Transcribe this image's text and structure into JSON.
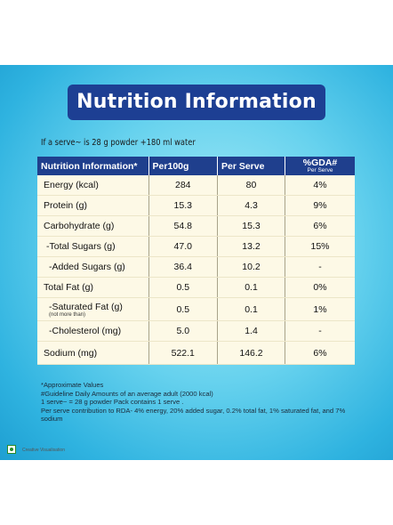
{
  "banner_title": "Nutrition Information",
  "serve_line": "If a serve~ is 28 g powder +180 ml water",
  "table": {
    "headers": {
      "name": "Nutrition Information*",
      "per100g": "Per100g",
      "perserve": "Per Serve",
      "gda_main": "%GDA#",
      "gda_sub": "Per Serve"
    },
    "rows": [
      {
        "label": "Energy (kcal)",
        "note": "",
        "per100g": "284",
        "perserve": "80",
        "gda": "4%"
      },
      {
        "label": "Protein (g)",
        "note": "",
        "per100g": "15.3",
        "perserve": "4.3",
        "gda": "9%"
      },
      {
        "label": "Carbohydrate (g)",
        "note": "",
        "per100g": "54.8",
        "perserve": "15.3",
        "gda": "6%"
      },
      {
        "label": "-Total Sugars (g)",
        "note": "",
        "per100g": "47.0",
        "perserve": "13.2",
        "gda": "15%"
      },
      {
        "label": "-Added Sugars (g)",
        "note": "",
        "per100g": "36.4",
        "perserve": "10.2",
        "gda": "-"
      },
      {
        "label": "Total Fat (g)",
        "note": "",
        "per100g": "0.5",
        "perserve": "0.1",
        "gda": "0%"
      },
      {
        "label": "-Saturated Fat (g)",
        "note": "(not more than)",
        "per100g": "0.5",
        "perserve": "0.1",
        "gda": "1%"
      },
      {
        "label": "-Cholesterol (mg)",
        "note": "",
        "per100g": "5.0",
        "perserve": "1.4",
        "gda": "-"
      },
      {
        "label": "Sodium (mg)",
        "note": "",
        "per100g": "522.1",
        "perserve": "146.2",
        "gda": "6%"
      }
    ]
  },
  "footnotes": [
    "*Approximate Values",
    "#Guideline Daily Amounts of an average adult (2000 kcal)",
    "1 serve~ = 28 g powder Pack contains 1 serve .",
    "Per serve contribution to RDA- 4% energy, 20% added sugar, 0.2% total fat, 1% saturated fat, and 7% sodium"
  ],
  "creative_note": "Creative Visualisation",
  "colors": {
    "banner": "#1d3f93",
    "header_row": "#1f3f8d",
    "table_body": "#fdf9e6",
    "background": "#4cc4ea",
    "veg_mark": "#2a8a2a"
  }
}
